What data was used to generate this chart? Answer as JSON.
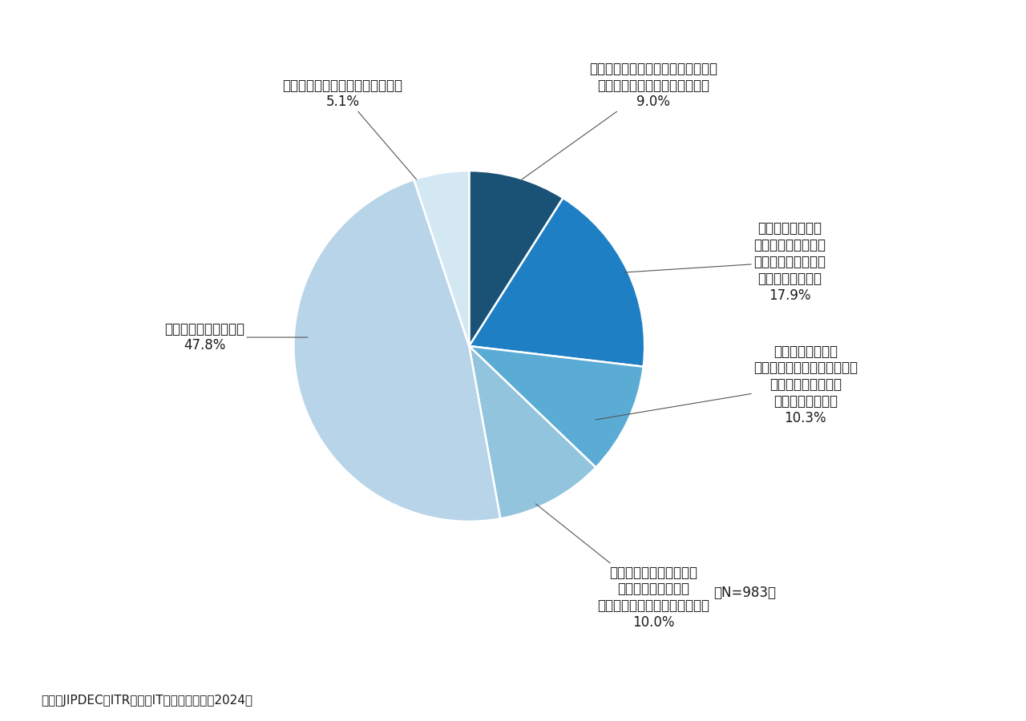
{
  "slices": [
    {
      "value": 9.0,
      "color": "#1a5276",
      "label_line1": "感染被害に遭い、身代金を支払って",
      "label_line2": "システムやデータを復旧させた",
      "label_line3": "9.0%"
    },
    {
      "value": 17.9,
      "color": "#1f7fc4",
      "label_line1": "感染被害に遭い、",
      "label_line2": "身代金を支払ったが",
      "label_line3": "システムやデータは",
      "label_line4": "復旧できなかった",
      "label_line5": "17.9%"
    },
    {
      "value": 10.3,
      "color": "#5bacd4",
      "label_line1": "感染被害に遭い、",
      "label_line2": "身代金を支払わなかったため",
      "label_line3": "システムやデータを",
      "label_line4": "復旧できなかった",
      "label_line5": "10.3%"
    },
    {
      "value": 10.0,
      "color": "#92c4de",
      "label_line1": "感染被害には遭ったが、",
      "label_line2": "身代金は支払わずに",
      "label_line3": "システムやデータを復旧させた",
      "label_line4": "10.0%"
    },
    {
      "value": 47.8,
      "color": "#b8d4e8",
      "label_line1": "被害には遭っていない",
      "label_line2": "47.8%"
    },
    {
      "value": 5.1,
      "color": "#d4e8f4",
      "label_line1": "被害に遭ったかどうかわからない",
      "label_line2": "5.1%"
    }
  ],
  "n_label": "（N=983）",
  "source_label": "出典：JIPDEC／ITR『企業IT利活用動向調査2024』",
  "background_color": "#ffffff",
  "wedge_edge_color": "#ffffff",
  "annotation_line_color": "#555555",
  "text_color": "#1a1a1a",
  "fontsize_labels": 12,
  "fontsize_source": 11,
  "fontsize_n": 12
}
